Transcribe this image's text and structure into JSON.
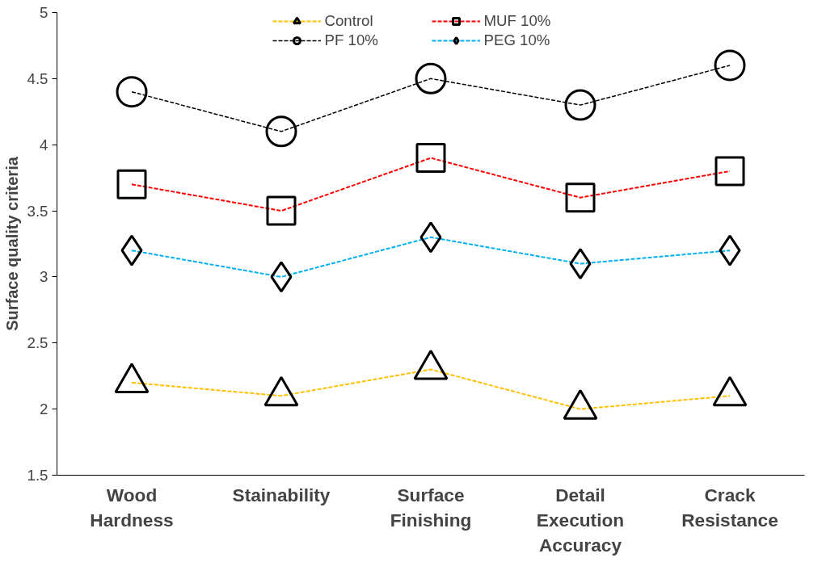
{
  "chart_data": {
    "type": "line",
    "ylabel": "Surface quality criteria",
    "categories": [
      "Wood Hardness",
      "Stainability",
      "Surface Finishing",
      "Detail Execution Accuracy",
      "Crack Resistance"
    ],
    "ylim": [
      1.5,
      5
    ],
    "yticks": [
      1.5,
      2,
      2.5,
      3,
      3.5,
      4,
      4.5,
      5
    ],
    "grid": false,
    "legend": "top",
    "line_style": "dashed",
    "series": [
      {
        "name": "Control",
        "color": "#ffc000",
        "marker": "triangle",
        "values": [
          2.2,
          2.1,
          2.3,
          2.0,
          2.1
        ]
      },
      {
        "name": "MUF 10%",
        "color": "#ff0000",
        "marker": "square",
        "values": [
          3.7,
          3.5,
          3.9,
          3.6,
          3.8
        ]
      },
      {
        "name": "PF 10%",
        "color": "#000000",
        "marker": "circle",
        "values": [
          4.4,
          4.1,
          4.5,
          4.3,
          4.6
        ]
      },
      {
        "name": "PEG 10%",
        "color": "#00b0f0",
        "marker": "diamond",
        "values": [
          3.2,
          3.0,
          3.3,
          3.1,
          3.2
        ]
      }
    ]
  }
}
